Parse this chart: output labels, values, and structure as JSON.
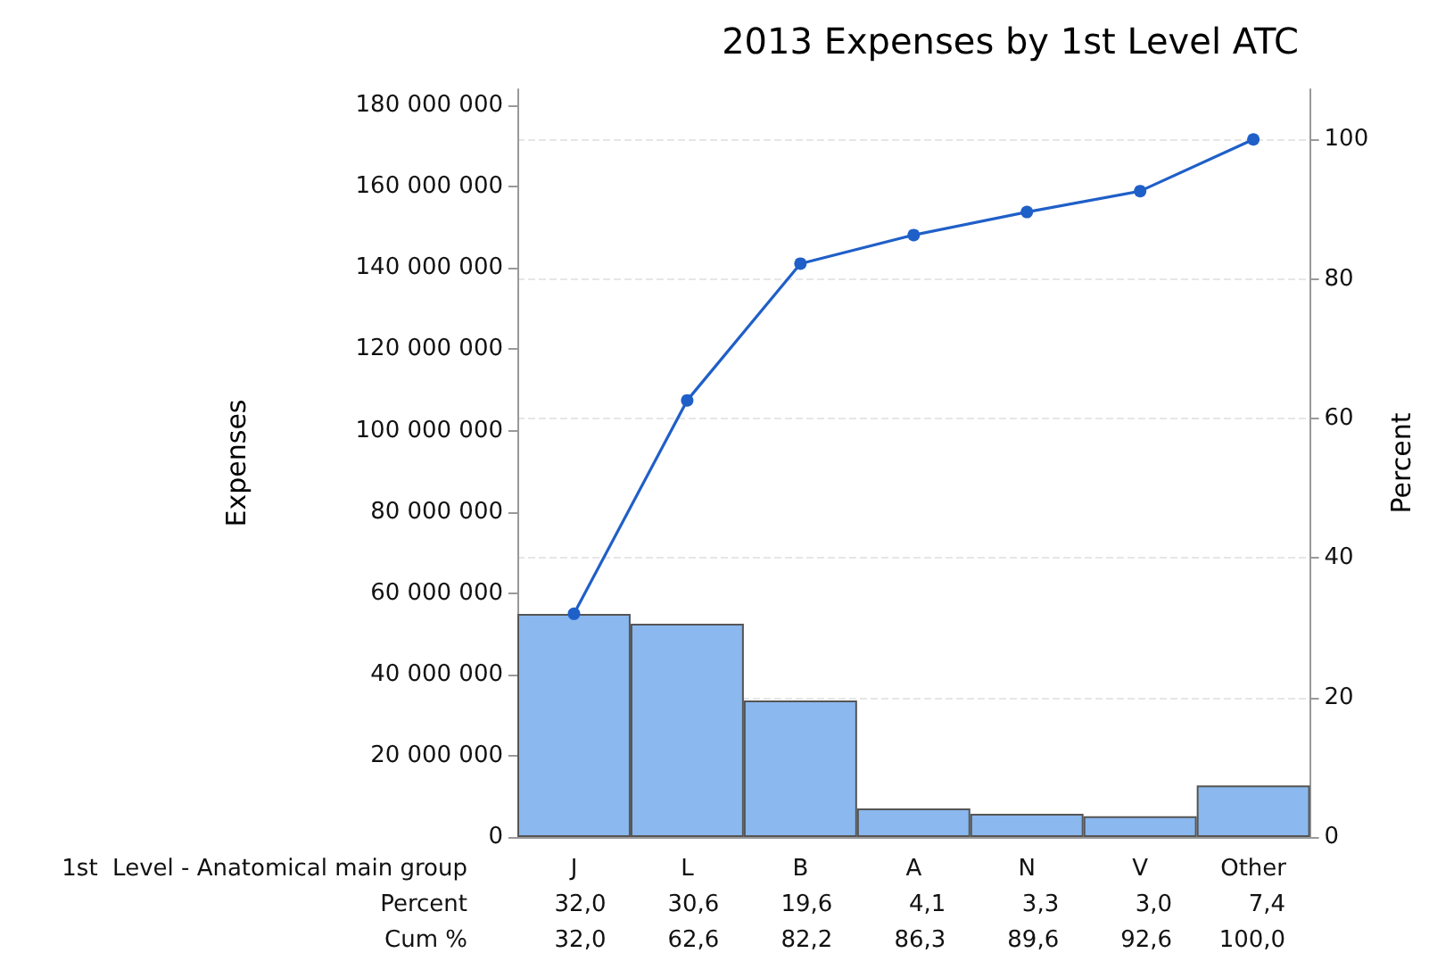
{
  "chart_data": {
    "type": "bar",
    "title": "2013 Expenses by 1st Level ATC",
    "xlabel": "1st  Level - Anatomical main group",
    "ylabel": "Expenses",
    "y2label": "Percent",
    "categories": [
      "J",
      "L",
      "B",
      "A",
      "N",
      "V",
      "Other"
    ],
    "series": [
      {
        "color": "#8ab8ef",
        "values": [
          54900000,
          52500000,
          33600000,
          7000000,
          5700000,
          5100000,
          12700000
        ]
      },
      {
        "type": "line",
        "axis": "y2",
        "color": "#1f5fc8",
        "values": [
          32.0,
          62.6,
          82.2,
          86.3,
          89.6,
          92.6,
          100.0
        ],
        "value_labels": [
          "32,0",
          "62,6",
          "82,2",
          "86,3",
          "89,6",
          "92,6",
          "100,0"
        ]
      }
    ],
    "annotations": [
      "Percent",
      "Cum %",
      "32,0",
      "30,6",
      "19,6",
      "4,1",
      "3,3",
      "3,0",
      "7,4"
    ],
    "ylim": [
      0,
      184000000
    ],
    "yticks": [
      0,
      20000000,
      40000000,
      60000000,
      80000000,
      100000000,
      120000000,
      140000000,
      160000000,
      180000000
    ],
    "y2lim": [
      0,
      107.2
    ],
    "y2ticks": [
      0,
      20,
      40,
      60,
      80,
      100
    ],
    "grid": true,
    "marker": "circle",
    "line_style": "solid"
  }
}
